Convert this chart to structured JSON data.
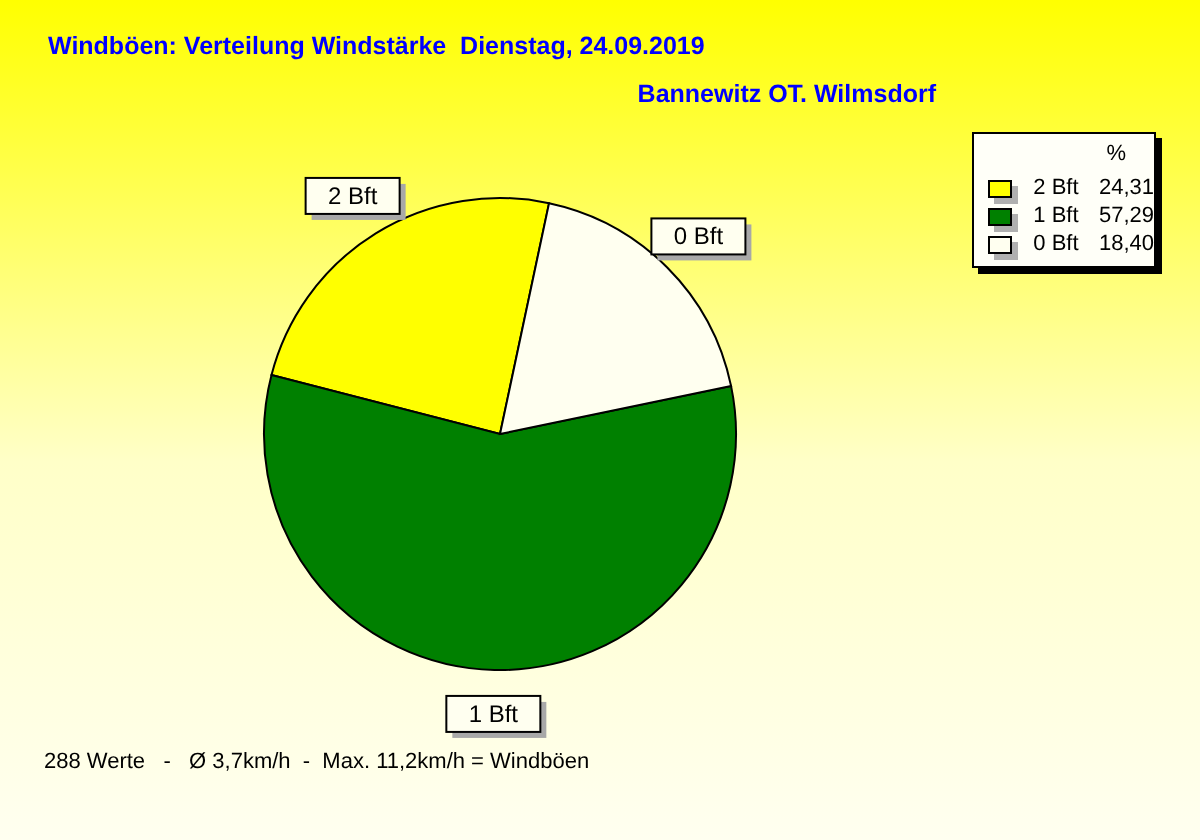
{
  "chart_data": {
    "type": "pie",
    "title": "Windböen: Verteilung Windstärke  Dienstag, 24.09.2019",
    "subtitle": "Bannewitz OT. Wilmsdorf",
    "legend_title": "%",
    "legend": "top right",
    "categories": [
      "2 Bft",
      "1 Bft",
      "0 Bft"
    ],
    "values": [
      24.31,
      57.29,
      18.4
    ],
    "value_labels": [
      "24,31",
      "57,29",
      "18,40"
    ],
    "colors": [
      "#ffff00",
      "#008000",
      "#fffff0"
    ],
    "annotations": [
      "288 Werte   -   Ø 3,7km/h  -  Max. 11,2km/h = Windböen"
    ]
  }
}
